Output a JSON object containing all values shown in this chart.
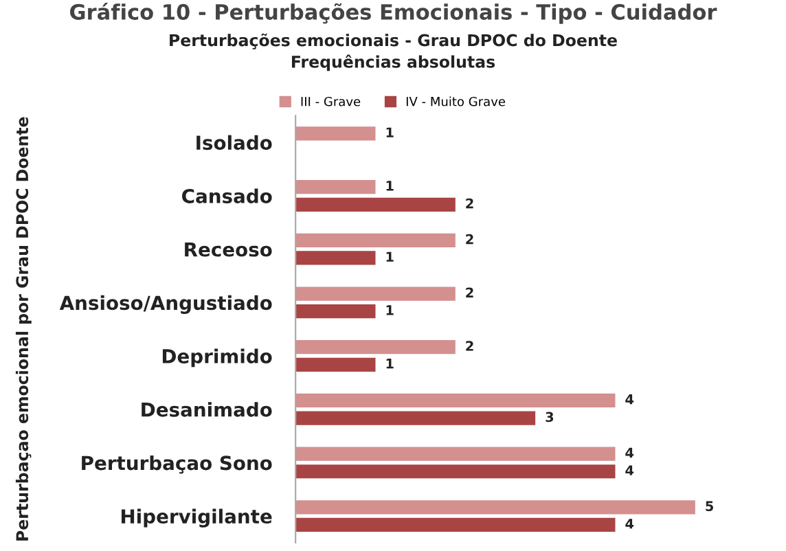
{
  "chart_data": {
    "type": "bar",
    "orientation": "horizontal",
    "title": "Perturbações emocionais - Grau DPOC do Doente\nFrequências absolutas",
    "annotations": [
      "Gráfico 10 - Perturbações Emocionais - Tipo - Cuidador"
    ],
    "ylabel": "Perturbaçao emocional por Grau DPOC Doente",
    "categories": [
      "Isolado",
      "Cansado",
      "Receoso",
      "Ansioso/Angustiado",
      "Deprimido",
      "Desanimado",
      "Perturbaçao Sono",
      "Hipervigilante"
    ],
    "series": [
      {
        "name": "III - Grave",
        "color": "#d48f8f",
        "values": [
          1,
          1,
          2,
          2,
          2,
          4,
          4,
          5
        ]
      },
      {
        "name": "IV - Muito Grave",
        "color": "#a94444",
        "values": [
          null,
          2,
          1,
          1,
          1,
          3,
          4,
          4
        ]
      }
    ],
    "data_labels": true,
    "legend": "top",
    "grid": false
  }
}
